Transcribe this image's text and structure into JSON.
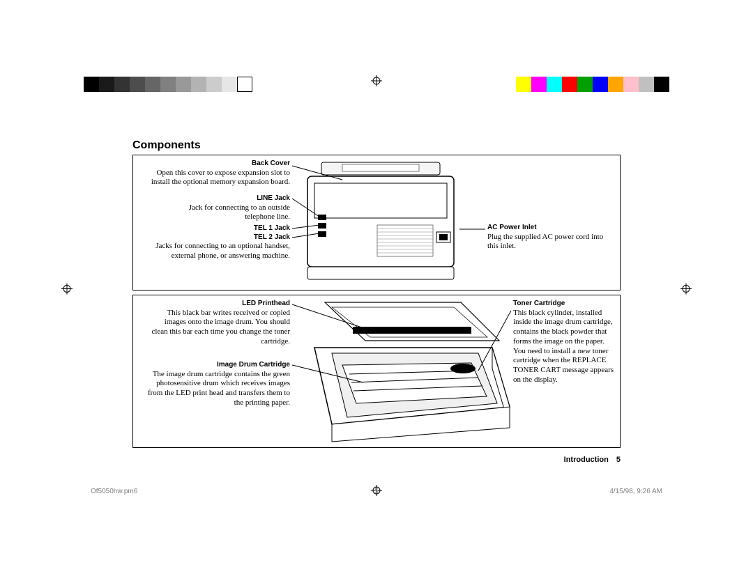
{
  "page": {
    "section_title": "Components",
    "footer_section_label": "Introduction",
    "footer_page_number": "5",
    "meta_filename": "Of5050hw.pm6",
    "meta_pagenum": "5",
    "meta_datetime": "4/15/98, 9:26 AM"
  },
  "colorbar_left": [
    "#000000",
    "#1a1a1a",
    "#333333",
    "#4d4d4d",
    "#666666",
    "#808080",
    "#999999",
    "#b3b3b3",
    "#cccccc",
    "#e6e6e6",
    "#ffffff"
  ],
  "colorbar_right": [
    "#ffff00",
    "#ff00ff",
    "#00ffff",
    "#ff0000",
    "#00a000",
    "#0000ff",
    "#ffa500",
    "#ffc0cb",
    "#c0c0c0",
    "#000000"
  ],
  "box1": {
    "callouts": {
      "back_cover": {
        "label": "Back Cover",
        "text": "Open this cover to expose expansion slot to install the optional  memory expansion board."
      },
      "line_jack": {
        "label": "LINE Jack",
        "text": "Jack for connecting to an outside telephone line."
      },
      "tel_jacks": {
        "label1": "TEL 1 Jack",
        "label2": "TEL 2 Jack",
        "text": "Jacks for connecting to an optional handset, external phone, or answering machine."
      },
      "ac_power": {
        "label": "AC Power Inlet",
        "text": "Plug the supplied AC power cord into this inlet."
      }
    }
  },
  "box2": {
    "callouts": {
      "led_printhead": {
        "label": "LED Printhead",
        "text": "This black bar writes received or copied images onto the image drum. You should clean this bar each time you change the toner cartridge."
      },
      "image_drum": {
        "label": "Image Drum Cartridge",
        "text": "The image drum cartridge contains the green photosensitive drum which receives images from the LED print head and transfers them to the printing paper."
      },
      "toner": {
        "label": "Toner Cartridge",
        "text": "This black cylinder, installed inside the image drum cartridge, contains the black powder that forms the image on the paper. You need to install a new toner cartridge when the REPLACE TONER CART message appears on the display."
      }
    }
  },
  "illustration_colors": {
    "line": "#000000",
    "light_fill": "#f5f5f5",
    "mid_fill": "#d0d0d0",
    "dark_fill": "#000000",
    "grille": "#b0b0b0"
  }
}
